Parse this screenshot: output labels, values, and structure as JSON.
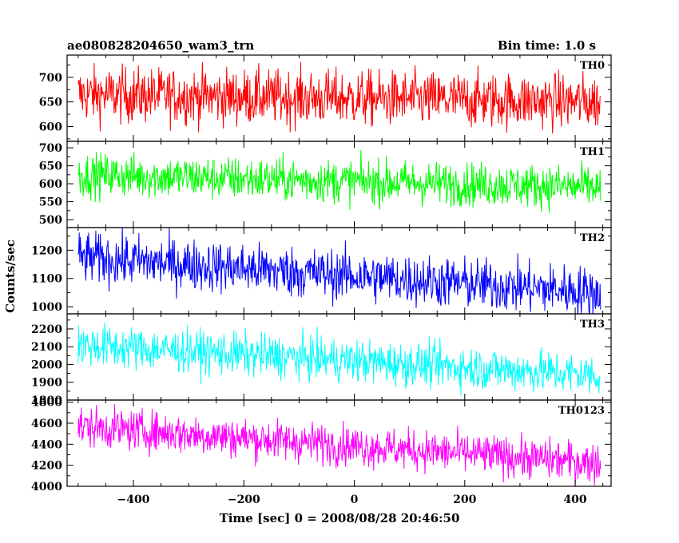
{
  "header": {
    "left_title": "ae080828204650_wam3_trn",
    "right_title": "Bin time: 1.0 s"
  },
  "chart_data": {
    "type": "line",
    "title": "ae080828204650_wam3_trn",
    "subtitle": "Bin time: 1.0 s",
    "xlabel": "Time [sec] 0 = 2008/08/28 20:46:50",
    "ylabel": "Counts/sec",
    "xlim": [
      -520,
      465
    ],
    "x_range_data": [
      -500,
      446
    ],
    "x_step": 1,
    "xticks": [
      -400,
      -200,
      0,
      200,
      400
    ],
    "xtick_labels": [
      "−400",
      "−200",
      "0",
      "200",
      "400"
    ],
    "grid": false,
    "panels": [
      {
        "name": "TH0",
        "color": "#ff0000",
        "ylim": [
          570,
          745
        ],
        "yticks": [
          600,
          650,
          700
        ],
        "ytick_labels": [
          "600",
          "650",
          "700"
        ],
        "mean_start": 665,
        "mean_end": 650,
        "noise": 28
      },
      {
        "name": "TH1",
        "color": "#00ff00",
        "ylim": [
          478,
          718
        ],
        "yticks": [
          500,
          550,
          600,
          650,
          700
        ],
        "ytick_labels": [
          "500",
          "550",
          "600",
          "650",
          "700"
        ],
        "mean_start": 625,
        "mean_end": 590,
        "noise": 30
      },
      {
        "name": "TH2",
        "color": "#0000ff",
        "ylim": [
          975,
          1280
        ],
        "yticks": [
          1000,
          1100,
          1200
        ],
        "ytick_labels": [
          "1000",
          "1100",
          "1200"
        ],
        "mean_start": 1175,
        "mean_end": 1050,
        "noise": 45
      },
      {
        "name": "TH3",
        "color": "#00ffff",
        "ylim": [
          1800,
          2285
        ],
        "yticks": [
          1800,
          1900,
          2000,
          2100,
          2200
        ],
        "ytick_labels": [
          "1800",
          "1900",
          "2000",
          "2100",
          "2200"
        ],
        "mean_start": 2110,
        "mean_end": 1940,
        "noise": 60
      },
      {
        "name": "TH0123",
        "color": "#ff00ff",
        "ylim": [
          4000,
          4820
        ],
        "yticks": [
          4000,
          4200,
          4400,
          4600,
          4800
        ],
        "ytick_labels": [
          "4000",
          "4200",
          "4400",
          "4600",
          "4800"
        ],
        "mean_start": 4570,
        "mean_end": 4220,
        "noise": 95
      }
    ]
  }
}
